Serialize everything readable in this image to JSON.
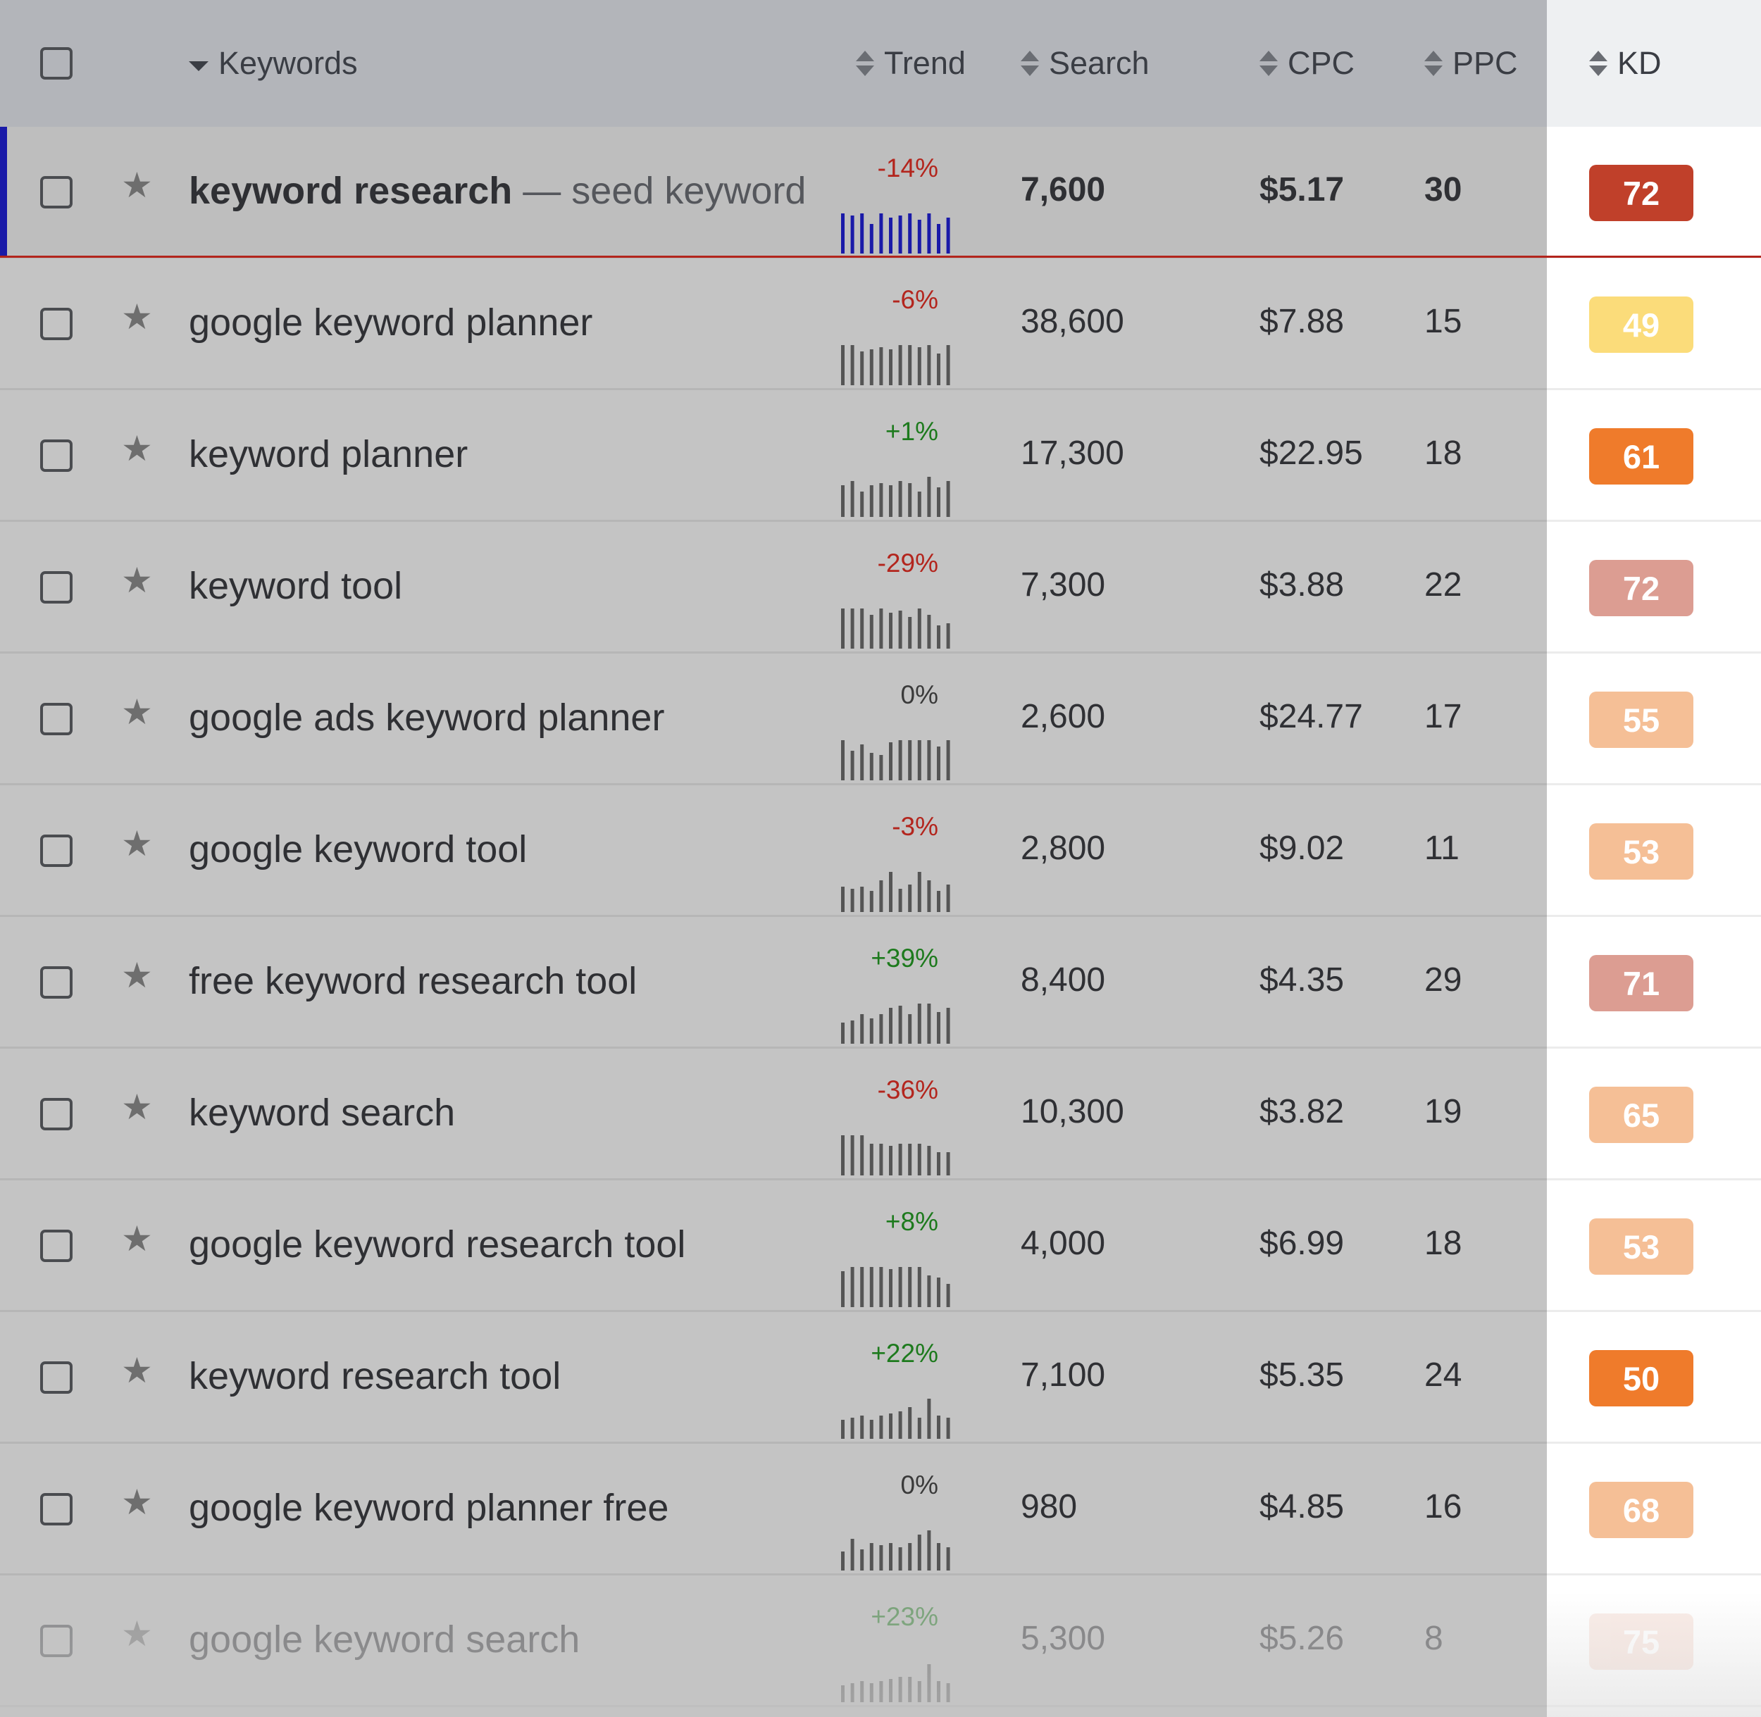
{
  "header": {
    "keywords": "Keywords",
    "trend": "Trend",
    "search": "Search",
    "cpc": "CPC",
    "ppc": "PPC",
    "kd": "KD"
  },
  "seed_suffix": "— seed keyword",
  "kd_colors": {
    "72a": "#c0402a",
    "49": "#fbdc7a",
    "61": "#ef7b2b",
    "72b": "#dc9d92",
    "55": "#f5bf96",
    "53": "#f5bf96",
    "71": "#dc9d92",
    "65": "#f5bf96",
    "50": "#ef7b2b",
    "68": "#f5bf96",
    "75": "#f5d6cc"
  },
  "rows": [
    {
      "keyword": "keyword research",
      "trend": "-14%",
      "trend_sign": "neg",
      "search": "7,600",
      "cpc": "$5.17",
      "ppc": "30",
      "kd": "72",
      "kd_color": "#c0402a",
      "spark": [
        0.95,
        0.9,
        0.95,
        0.7,
        0.95,
        0.85,
        0.9,
        0.95,
        0.8,
        0.95,
        0.7,
        0.85
      ]
    },
    {
      "keyword": "google keyword planner",
      "trend": "-6%",
      "trend_sign": "neg",
      "search": "38,600",
      "cpc": "$7.88",
      "ppc": "15",
      "kd": "49",
      "kd_color": "#fbdc7a",
      "spark": [
        0.95,
        0.95,
        0.8,
        0.85,
        0.9,
        0.85,
        0.95,
        0.95,
        0.9,
        0.95,
        0.75,
        0.95
      ]
    },
    {
      "keyword": "keyword planner",
      "trend": "+1%",
      "trend_sign": "pos",
      "search": "17,300",
      "cpc": "$22.95",
      "ppc": "18",
      "kd": "61",
      "kd_color": "#ef7b2b",
      "spark": [
        0.75,
        0.85,
        0.6,
        0.75,
        0.8,
        0.75,
        0.85,
        0.8,
        0.6,
        0.95,
        0.7,
        0.85
      ]
    },
    {
      "keyword": "keyword tool",
      "trend": "-29%",
      "trend_sign": "neg",
      "search": "7,300",
      "cpc": "$3.88",
      "ppc": "22",
      "kd": "72",
      "kd_color": "#dc9d92",
      "spark": [
        0.95,
        0.95,
        0.95,
        0.8,
        0.95,
        0.85,
        0.9,
        0.75,
        0.95,
        0.8,
        0.55,
        0.6
      ]
    },
    {
      "keyword": "google ads keyword planner",
      "trend": "0%",
      "trend_sign": "zero",
      "search": "2,600",
      "cpc": "$24.77",
      "ppc": "17",
      "kd": "55",
      "kd_color": "#f5bf96",
      "spark": [
        0.95,
        0.7,
        0.85,
        0.65,
        0.6,
        0.9,
        0.95,
        0.95,
        0.95,
        0.95,
        0.8,
        0.95
      ]
    },
    {
      "keyword": "google keyword tool",
      "trend": "-3%",
      "trend_sign": "neg",
      "search": "2,800",
      "cpc": "$9.02",
      "ppc": "11",
      "kd": "53",
      "kd_color": "#f5bf96",
      "spark": [
        0.6,
        0.55,
        0.6,
        0.5,
        0.75,
        0.95,
        0.55,
        0.65,
        0.95,
        0.75,
        0.5,
        0.65
      ]
    },
    {
      "keyword": "free keyword research tool",
      "trend": "+39%",
      "trend_sign": "pos",
      "search": "8,400",
      "cpc": "$4.35",
      "ppc": "29",
      "kd": "71",
      "kd_color": "#dc9d92",
      "spark": [
        0.5,
        0.55,
        0.7,
        0.6,
        0.7,
        0.85,
        0.9,
        0.7,
        0.95,
        0.95,
        0.75,
        0.85
      ]
    },
    {
      "keyword": "keyword search",
      "trend": "-36%",
      "trend_sign": "neg",
      "search": "10,300",
      "cpc": "$3.82",
      "ppc": "19",
      "kd": "65",
      "kd_color": "#f5bf96",
      "spark": [
        0.95,
        0.95,
        0.95,
        0.75,
        0.75,
        0.7,
        0.75,
        0.75,
        0.75,
        0.7,
        0.55,
        0.55
      ]
    },
    {
      "keyword": "google keyword research tool",
      "trend": "+8%",
      "trend_sign": "pos",
      "search": "4,000",
      "cpc": "$6.99",
      "ppc": "18",
      "kd": "53",
      "kd_color": "#f5bf96",
      "spark": [
        0.85,
        0.95,
        0.95,
        0.95,
        0.95,
        0.9,
        0.95,
        0.95,
        0.95,
        0.75,
        0.7,
        0.55
      ]
    },
    {
      "keyword": "keyword research tool",
      "trend": "+22%",
      "trend_sign": "pos",
      "search": "7,100",
      "cpc": "$5.35",
      "ppc": "24",
      "kd": "50",
      "kd_color": "#ef7b2b",
      "spark": [
        0.45,
        0.5,
        0.55,
        0.45,
        0.55,
        0.6,
        0.65,
        0.75,
        0.5,
        0.95,
        0.55,
        0.5
      ]
    },
    {
      "keyword": "google keyword planner free",
      "trend": "0%",
      "trend_sign": "zero",
      "search": "980",
      "cpc": "$4.85",
      "ppc": "16",
      "kd": "68",
      "kd_color": "#f5bf96",
      "spark": [
        0.45,
        0.75,
        0.5,
        0.65,
        0.6,
        0.65,
        0.55,
        0.65,
        0.85,
        0.95,
        0.65,
        0.55
      ]
    },
    {
      "keyword": "google keyword search",
      "trend": "+23%",
      "trend_sign": "pos",
      "search": "5,300",
      "cpc": "$5.26",
      "ppc": "8",
      "kd": "75",
      "kd_color": "#f5d6cc",
      "spark": [
        0.4,
        0.45,
        0.5,
        0.45,
        0.5,
        0.55,
        0.6,
        0.6,
        0.5,
        0.9,
        0.5,
        0.45
      ]
    }
  ]
}
